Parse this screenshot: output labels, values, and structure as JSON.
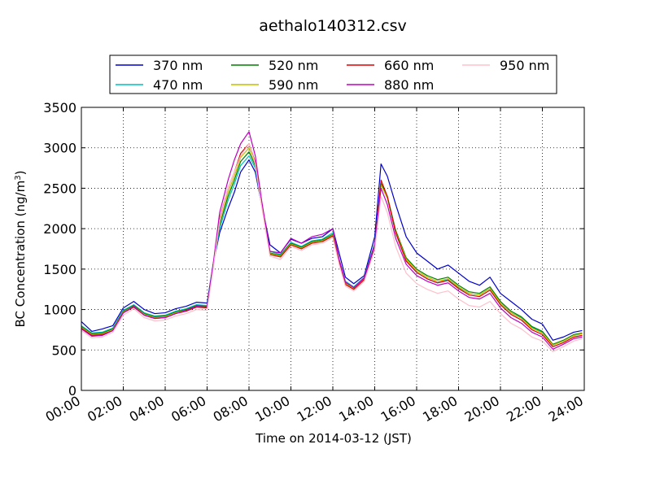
{
  "chart_data": {
    "type": "line",
    "title": "aethalo140312.csv",
    "xlabel": "Time on 2014-03-12 (JST)",
    "ylabel": {
      "prefix": "BC Concentration (ng/m",
      "superscript": "3",
      "suffix": ")"
    },
    "xlim": [
      "2014-03-12 00:00",
      "2014-03-13 00:00"
    ],
    "ylim": [
      0,
      3500
    ],
    "x_ticks": [
      "00:00",
      "02:00",
      "04:00",
      "06:00",
      "08:00",
      "10:00",
      "12:00",
      "14:00",
      "16:00",
      "18:00",
      "20:00",
      "22:00",
      "24:00"
    ],
    "y_ticks": [
      "0",
      "500",
      "1000",
      "1500",
      "2000",
      "2500",
      "3000",
      "3500"
    ],
    "grid": true,
    "legend_position": "top",
    "x_hours": [
      0,
      0.5,
      1,
      1.5,
      2,
      2.5,
      3,
      3.5,
      4,
      4.5,
      5,
      5.5,
      6,
      6.3,
      6.6,
      7,
      7.3,
      7.6,
      8,
      8.3,
      8.6,
      9,
      9.5,
      10,
      10.5,
      11,
      11.5,
      12,
      12.3,
      12.6,
      13,
      13.5,
      14,
      14.3,
      14.6,
      15,
      15.5,
      16,
      16.5,
      17,
      17.5,
      18,
      18.5,
      19,
      19.5,
      20,
      20.5,
      21,
      21.5,
      22,
      22.5,
      23,
      23.5,
      23.9
    ],
    "series": [
      {
        "name": "370 nm",
        "color": "#0000cc",
        "values": [
          850,
          730,
          760,
          800,
          1020,
          1100,
          1000,
          950,
          960,
          1010,
          1040,
          1090,
          1080,
          1580,
          1950,
          2250,
          2450,
          2700,
          2850,
          2700,
          2300,
          1800,
          1700,
          1870,
          1820,
          1880,
          1900,
          2000,
          1700,
          1400,
          1320,
          1420,
          1900,
          2800,
          2650,
          2300,
          1900,
          1700,
          1600,
          1500,
          1550,
          1450,
          1350,
          1300,
          1400,
          1200,
          1100,
          1000,
          880,
          820,
          620,
          660,
          720,
          740
        ]
      },
      {
        "name": "470 nm",
        "color": "#00bfbf",
        "values": [
          800,
          710,
          720,
          770,
          990,
          1060,
          960,
          920,
          930,
          980,
          1010,
          1060,
          1050,
          1570,
          2000,
          2350,
          2550,
          2780,
          2900,
          2750,
          2300,
          1720,
          1680,
          1830,
          1780,
          1850,
          1870,
          1950,
          1620,
          1350,
          1280,
          1400,
          1820,
          2550,
          2380,
          1950,
          1600,
          1460,
          1380,
          1330,
          1370,
          1270,
          1200,
          1180,
          1260,
          1080,
          960,
          900,
          780,
          720,
          560,
          610,
          680,
          700
        ]
      },
      {
        "name": "520 nm",
        "color": "#007f00",
        "values": [
          790,
          700,
          710,
          760,
          980,
          1050,
          950,
          910,
          920,
          970,
          1000,
          1050,
          1040,
          1560,
          2050,
          2400,
          2600,
          2830,
          2950,
          2780,
          2300,
          1700,
          1670,
          1820,
          1770,
          1840,
          1860,
          1930,
          1600,
          1330,
          1270,
          1390,
          1800,
          2560,
          2400,
          1980,
          1640,
          1500,
          1420,
          1370,
          1400,
          1300,
          1220,
          1200,
          1280,
          1100,
          980,
          910,
          790,
          730,
          570,
          620,
          690,
          710
        ]
      },
      {
        "name": "590 nm",
        "color": "#bfbf00",
        "values": [
          780,
          690,
          700,
          750,
          970,
          1040,
          940,
          900,
          910,
          960,
          990,
          1040,
          1030,
          1550,
          2080,
          2450,
          2650,
          2880,
          3000,
          2800,
          2300,
          1690,
          1660,
          1810,
          1760,
          1830,
          1850,
          1920,
          1590,
          1320,
          1260,
          1380,
          1790,
          2540,
          2380,
          1960,
          1620,
          1480,
          1400,
          1350,
          1380,
          1280,
          1200,
          1180,
          1260,
          1080,
          960,
          890,
          770,
          710,
          560,
          610,
          680,
          700
        ]
      },
      {
        "name": "660 nm",
        "color": "#dd0000",
        "values": [
          770,
          680,
          690,
          740,
          960,
          1030,
          930,
          890,
          900,
          950,
          980,
          1030,
          1020,
          1550,
          2120,
          2500,
          2700,
          2930,
          3050,
          2820,
          2300,
          1680,
          1650,
          1800,
          1750,
          1820,
          1840,
          1910,
          1580,
          1310,
          1250,
          1370,
          1780,
          2600,
          2400,
          1950,
          1600,
          1460,
          1380,
          1330,
          1360,
          1260,
          1180,
          1160,
          1240,
          1060,
          940,
          870,
          750,
          690,
          540,
          590,
          660,
          680
        ]
      },
      {
        "name": "880 nm",
        "color": "#bf00bf",
        "values": [
          760,
          670,
          680,
          740,
          960,
          1040,
          930,
          890,
          900,
          950,
          990,
          1040,
          1030,
          1580,
          2200,
          2600,
          2850,
          3050,
          3200,
          2900,
          2350,
          1720,
          1700,
          1880,
          1820,
          1900,
          1930,
          2000,
          1620,
          1340,
          1270,
          1390,
          1800,
          2500,
          2300,
          1880,
          1560,
          1420,
          1350,
          1300,
          1330,
          1230,
          1150,
          1130,
          1200,
          1020,
          900,
          830,
          720,
          660,
          510,
          570,
          640,
          660
        ]
      },
      {
        "name": "950 nm",
        "color": "#ffc0cb",
        "values": [
          740,
          650,
          660,
          720,
          930,
          1010,
          900,
          860,
          870,
          920,
          950,
          1000,
          990,
          1520,
          2100,
          2500,
          2700,
          2900,
          3050,
          2800,
          2280,
          1660,
          1620,
          1780,
          1730,
          1800,
          1820,
          1890,
          1560,
          1290,
          1230,
          1350,
          1740,
          2400,
          2200,
          1780,
          1450,
          1320,
          1250,
          1200,
          1230,
          1130,
          1050,
          1030,
          1100,
          950,
          830,
          760,
          660,
          610,
          480,
          540,
          610,
          640
        ]
      }
    ]
  }
}
